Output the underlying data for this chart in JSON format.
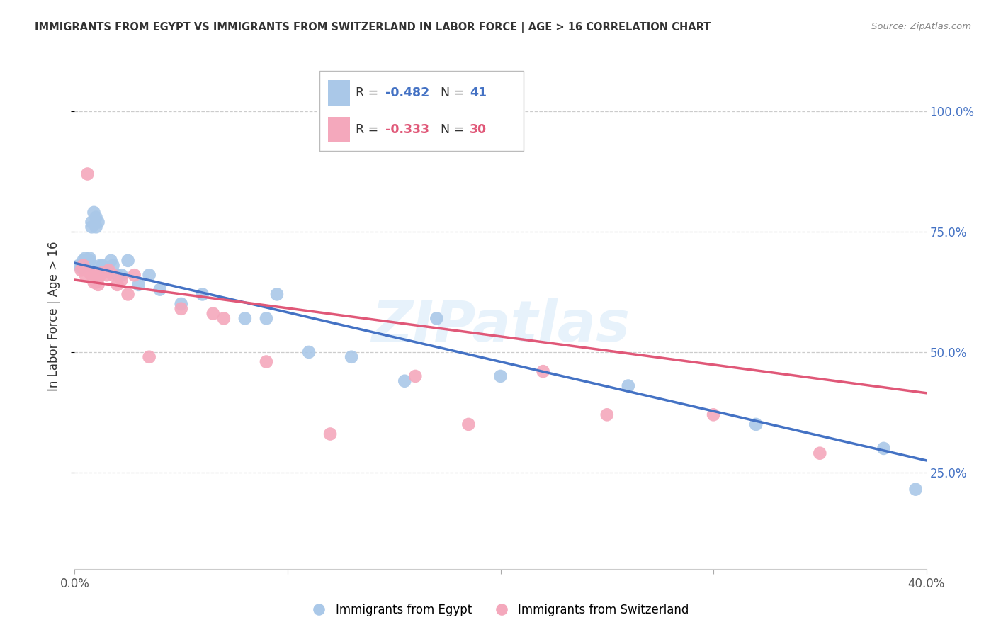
{
  "title": "IMMIGRANTS FROM EGYPT VS IMMIGRANTS FROM SWITZERLAND IN LABOR FORCE | AGE > 16 CORRELATION CHART",
  "source": "Source: ZipAtlas.com",
  "ylabel_label": "In Labor Force | Age > 16",
  "x_min": 0.0,
  "x_max": 0.4,
  "y_min": 0.0,
  "y_max": 1.1,
  "egypt_color": "#aac8e8",
  "switzerland_color": "#f4a8bc",
  "egypt_line_color": "#4472c4",
  "switzerland_line_color": "#e05878",
  "egypt_R": -0.482,
  "egypt_N": 41,
  "switzerland_R": -0.333,
  "switzerland_N": 30,
  "watermark": "ZIPatlas",
  "background_color": "#ffffff",
  "grid_color": "#cccccc",
  "egypt_x": [
    0.002,
    0.003,
    0.004,
    0.004,
    0.005,
    0.005,
    0.006,
    0.006,
    0.007,
    0.007,
    0.008,
    0.008,
    0.009,
    0.01,
    0.01,
    0.011,
    0.012,
    0.013,
    0.015,
    0.017,
    0.018,
    0.02,
    0.022,
    0.025,
    0.03,
    0.035,
    0.04,
    0.05,
    0.06,
    0.08,
    0.09,
    0.095,
    0.11,
    0.13,
    0.155,
    0.17,
    0.2,
    0.26,
    0.32,
    0.38,
    0.395
  ],
  "egypt_y": [
    0.68,
    0.675,
    0.68,
    0.69,
    0.685,
    0.695,
    0.68,
    0.685,
    0.69,
    0.695,
    0.76,
    0.77,
    0.79,
    0.76,
    0.78,
    0.77,
    0.68,
    0.68,
    0.675,
    0.69,
    0.68,
    0.66,
    0.66,
    0.69,
    0.64,
    0.66,
    0.63,
    0.6,
    0.62,
    0.57,
    0.57,
    0.62,
    0.5,
    0.49,
    0.44,
    0.57,
    0.45,
    0.43,
    0.35,
    0.3,
    0.215
  ],
  "switzerland_x": [
    0.003,
    0.004,
    0.005,
    0.006,
    0.007,
    0.008,
    0.009,
    0.01,
    0.011,
    0.012,
    0.013,
    0.015,
    0.016,
    0.018,
    0.02,
    0.022,
    0.025,
    0.028,
    0.035,
    0.05,
    0.065,
    0.07,
    0.09,
    0.12,
    0.16,
    0.185,
    0.22,
    0.25,
    0.3,
    0.35
  ],
  "switzerland_y": [
    0.67,
    0.68,
    0.66,
    0.87,
    0.665,
    0.66,
    0.645,
    0.645,
    0.64,
    0.66,
    0.665,
    0.66,
    0.67,
    0.66,
    0.64,
    0.65,
    0.62,
    0.66,
    0.49,
    0.59,
    0.58,
    0.57,
    0.48,
    0.33,
    0.45,
    0.35,
    0.46,
    0.37,
    0.37,
    0.29
  ]
}
